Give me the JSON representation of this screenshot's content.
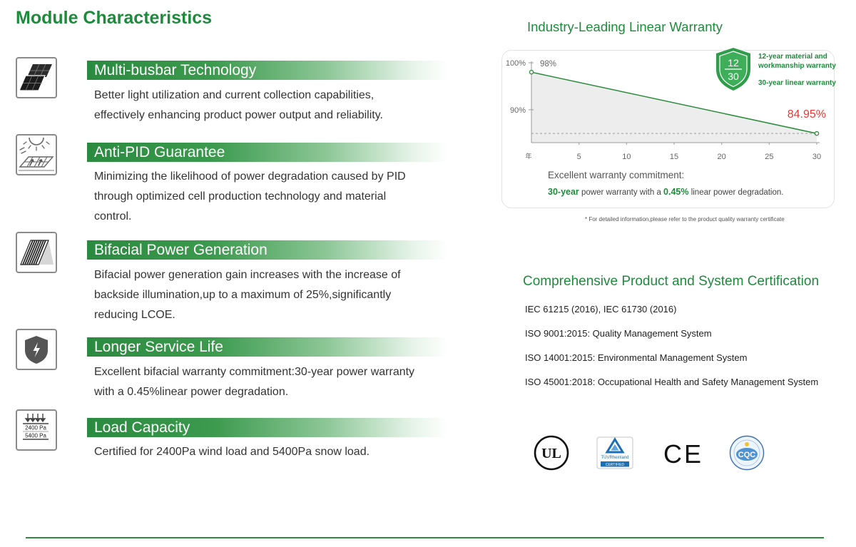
{
  "page_title": "Module Characteristics",
  "features": [
    {
      "icon": "multi-busbar-icon",
      "heading": "Multi-busbar Technology",
      "lines": [
        "Better light utilization and current collection capabilities,",
        "effectively enhancing product power output and reliability."
      ]
    },
    {
      "icon": "anti-pid-icon",
      "heading": "Anti-PID Guarantee",
      "lines": [
        "Minimizing the likelihood of power degradation caused by PID",
        "through optimized cell production technology and material",
        "control."
      ]
    },
    {
      "icon": "bifacial-panel-icon",
      "heading": "Bifacial Power Generation",
      "lines": [
        "Bifacial power generation gain increases with the increase of",
        "backside illumination,up to a maximum of 25%,significantly",
        "reducing LCOE."
      ]
    },
    {
      "icon": "shield-lightning-icon",
      "heading": "Longer Service Life",
      "lines": [
        "Excellent bifacial warranty commitment:30-year power warranty",
        "with a 0.45%linear power degradation."
      ]
    },
    {
      "icon": "load-capacity-icon",
      "heading": "Load Capacity",
      "lines": [
        "Certified for 2400Pa wind load and 5400Pa snow load."
      ],
      "icon_labels": [
        "2400 Pa",
        "5400 Pa"
      ]
    }
  ],
  "warranty": {
    "title": "Industry-Leading Linear Warranty",
    "badge": {
      "icon": "warranty-shield-icon",
      "top": "12",
      "bottom": "30",
      "lines": [
        "12-year material and",
        "workmanship warranty"
      ],
      "linear": "30-year linear warranty"
    },
    "commitment": "Excellent warranty commitment:",
    "detail": {
      "years": "30-year",
      "middle": " power warranty with a ",
      "rate": "0.45%",
      "end": " linear power degradation."
    },
    "footnote": "* For detailed information,please refer to the product quality warranty certificate"
  },
  "chart_data": {
    "type": "line",
    "x": [
      0,
      30
    ],
    "series": [
      {
        "values": [
          98,
          84.95
        ],
        "labels": [
          "98%",
          "84.95%"
        ]
      }
    ],
    "y_ticks": [
      {
        "value": 100,
        "label": "100%"
      },
      {
        "value": 90,
        "label": "90%"
      }
    ],
    "x_ticks": [
      5,
      10,
      15,
      20,
      25,
      30
    ],
    "xlabel": "年",
    "xlim": [
      0,
      30
    ],
    "ylim": [
      83,
      100
    ],
    "reference_line": 84.95,
    "area_fill": true,
    "grid": false
  },
  "certification": {
    "title": "Comprehensive Product and System Certification",
    "items": [
      "IEC 61215 (2016), IEC 61730 (2016)",
      "ISO 9001:2015: Quality Management System",
      "ISO 14001:2015: Environmental Management System",
      "ISO 45001:2018: Occupational Health and Safety Management System"
    ],
    "logos": {
      "ul": "UL",
      "tuv": "TÜVRheinland",
      "tuv_badge": "CERTIFIED",
      "ce": "CE",
      "cqc": "CQC"
    }
  },
  "colors": {
    "accent": "#1e8b3c",
    "line": "#2e8b3e",
    "highlight": "#e53935",
    "body_text": "#333333",
    "area_fill": "#ededed",
    "axis": "#9a9a9a"
  }
}
